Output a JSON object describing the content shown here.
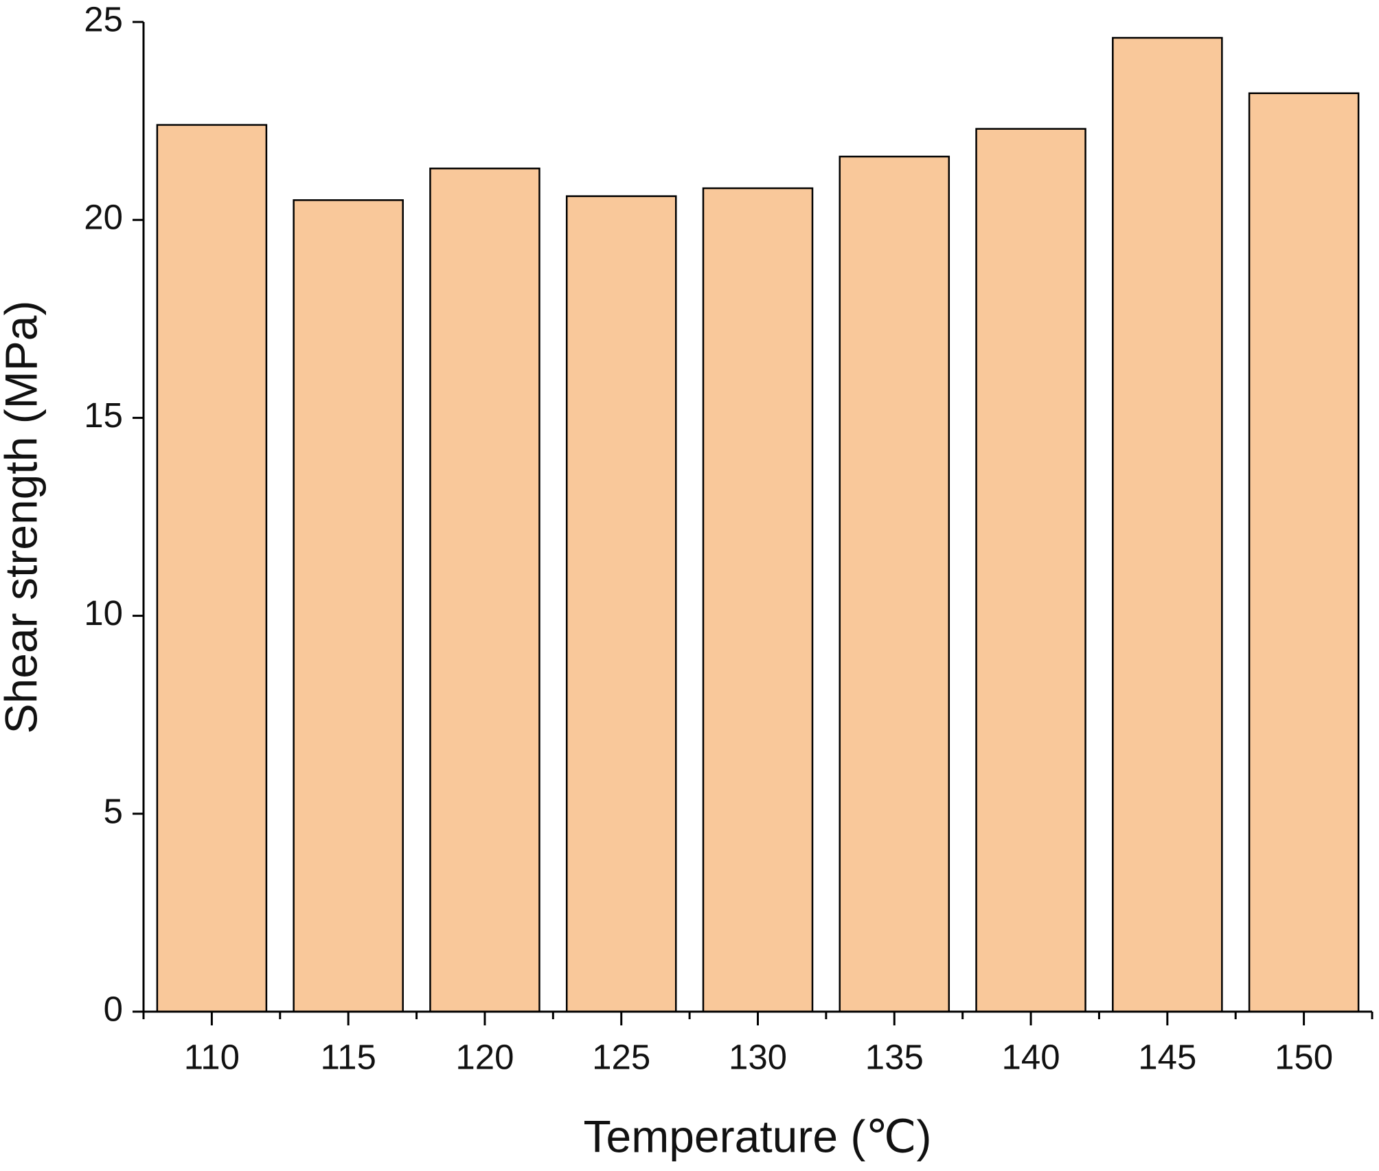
{
  "chart_data": {
    "type": "bar",
    "x_label": "Temperature (℃)",
    "y_label": "Shear strength (MPa)",
    "categories": [
      "110",
      "115",
      "120",
      "125",
      "130",
      "135",
      "140",
      "145",
      "150"
    ],
    "values": [
      22.4,
      20.5,
      21.3,
      20.6,
      20.8,
      21.6,
      22.3,
      24.6,
      23.2
    ],
    "color": "#f9c89a",
    "ylim": [
      0,
      25
    ],
    "yticks": [
      0,
      5,
      10,
      15,
      20,
      25
    ],
    "grid": false
  }
}
